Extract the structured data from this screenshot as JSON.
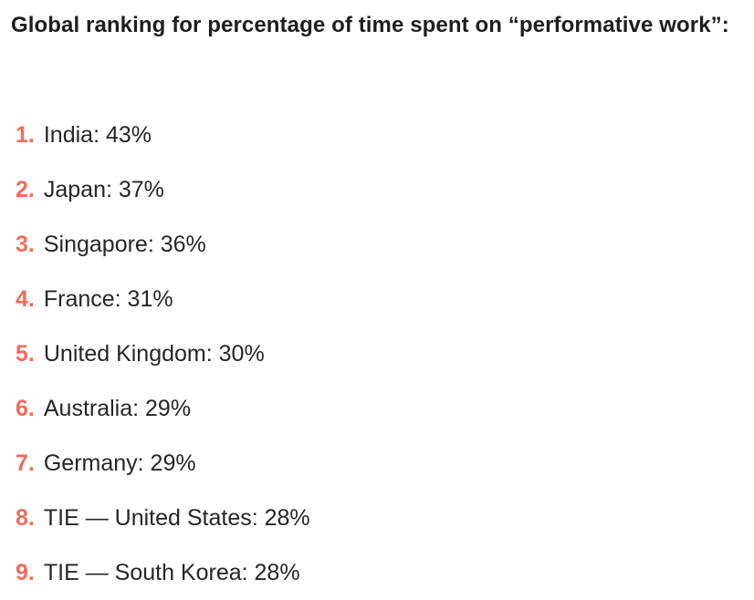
{
  "heading": "Global ranking for percentage of time spent on “performative work”:",
  "ranking": [
    {
      "number": "1.",
      "text": "India: 43%"
    },
    {
      "number": "2.",
      "text": "Japan: 37%"
    },
    {
      "number": "3.",
      "text": "Singapore: 36%"
    },
    {
      "number": "4.",
      "text": "France: 31%"
    },
    {
      "number": "5.",
      "text": "United Kingdom: 30%"
    },
    {
      "number": "6.",
      "text": "Australia: 29%"
    },
    {
      "number": "7.",
      "text": "Germany: 29%"
    },
    {
      "number": "8.",
      "text": "TIE — United States: 28%"
    },
    {
      "number": "9.",
      "text": "TIE — South Korea: 28%"
    }
  ],
  "colors": {
    "rank_number": "#f26b5b",
    "text": "#262626"
  }
}
